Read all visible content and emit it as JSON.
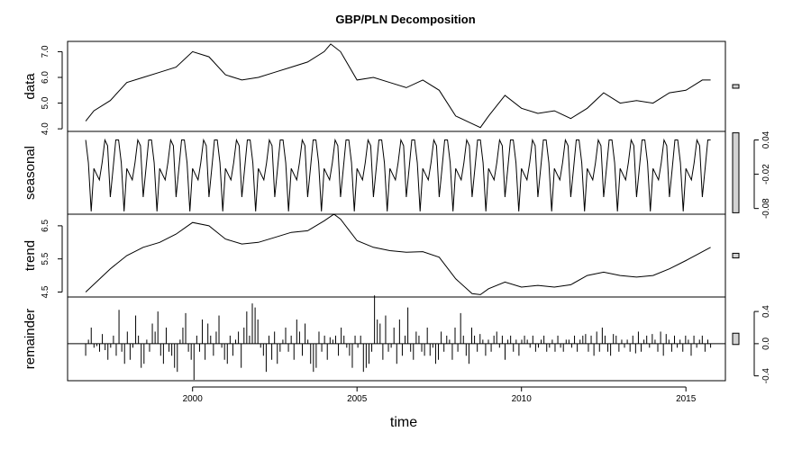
{
  "chart_data": {
    "type": "line",
    "title": "GBP/PLN Decomposition",
    "xlabel": "time",
    "xlim": [
      1996.2,
      2016.2
    ],
    "xticks": [
      2000,
      2005,
      2010,
      2015
    ],
    "panels": [
      {
        "name": "data",
        "ylabel": "data",
        "ylim": [
          3.9,
          7.4
        ],
        "yticks": [
          4.0,
          5.0,
          6.0,
          7.0
        ],
        "ytick_labels": [
          "4.0",
          "5.0",
          "6.0",
          "7.0"
        ],
        "axis_side": "left",
        "style": "line",
        "x": [
          1996.75,
          1997.0,
          1997.5,
          1998.0,
          1998.5,
          1999.0,
          1999.5,
          2000.0,
          2000.5,
          2001.0,
          2001.5,
          2002.0,
          2002.5,
          2003.0,
          2003.5,
          2004.0,
          2004.2,
          2004.5,
          2005.0,
          2005.5,
          2006.0,
          2006.5,
          2007.0,
          2007.5,
          2008.0,
          2008.5,
          2008.75,
          2009.0,
          2009.5,
          2010.0,
          2010.5,
          2011.0,
          2011.5,
          2012.0,
          2012.5,
          2013.0,
          2013.5,
          2014.0,
          2014.5,
          2015.0,
          2015.5,
          2015.75
        ],
        "values": [
          4.3,
          4.7,
          5.1,
          5.8,
          6.0,
          6.2,
          6.4,
          7.0,
          6.8,
          6.1,
          5.9,
          6.0,
          6.2,
          6.4,
          6.6,
          7.0,
          7.3,
          7.0,
          5.9,
          6.0,
          5.8,
          5.6,
          5.9,
          5.5,
          4.5,
          4.2,
          4.05,
          4.5,
          5.3,
          4.8,
          4.6,
          4.7,
          4.4,
          4.8,
          5.4,
          5.0,
          5.1,
          5.0,
          5.4,
          5.5,
          5.9,
          5.9
        ]
      },
      {
        "name": "seasonal",
        "ylabel": "seasonal",
        "ylim": [
          -0.09,
          0.055
        ],
        "yticks": [
          -0.08,
          -0.02,
          0.04
        ],
        "ytick_labels": [
          "-0.08",
          "-0.02",
          "0.04"
        ],
        "axis_side": "right",
        "style": "line",
        "start": 1996.75,
        "end": 2015.75,
        "pattern": [
          0.04,
          0.0,
          -0.085,
          -0.01,
          -0.02,
          -0.03,
          0.0,
          0.04,
          0.03,
          -0.06,
          -0.01,
          0.04
        ]
      },
      {
        "name": "trend",
        "ylabel": "trend",
        "ylim": [
          4.35,
          6.85
        ],
        "yticks": [
          4.5,
          5.5,
          6.5
        ],
        "ytick_labels": [
          "4.5",
          "5.5",
          "6.5"
        ],
        "axis_side": "left",
        "style": "line",
        "x": [
          1996.75,
          1997.5,
          1998.0,
          1998.5,
          1999.0,
          1999.5,
          2000.0,
          2000.5,
          2001.0,
          2001.5,
          2002.0,
          2002.5,
          2003.0,
          2003.5,
          2004.0,
          2004.3,
          2004.5,
          2005.0,
          2005.5,
          2006.0,
          2006.5,
          2007.0,
          2007.5,
          2008.0,
          2008.5,
          2008.75,
          2009.0,
          2009.5,
          2010.0,
          2010.5,
          2011.0,
          2011.5,
          2012.0,
          2012.5,
          2013.0,
          2013.5,
          2014.0,
          2014.5,
          2015.0,
          2015.75
        ],
        "values": [
          4.5,
          5.2,
          5.6,
          5.85,
          6.0,
          6.25,
          6.6,
          6.5,
          6.1,
          5.95,
          6.0,
          6.15,
          6.3,
          6.35,
          6.65,
          6.85,
          6.7,
          6.05,
          5.85,
          5.75,
          5.7,
          5.72,
          5.55,
          4.9,
          4.45,
          4.42,
          4.6,
          4.8,
          4.65,
          4.7,
          4.65,
          4.72,
          5.0,
          5.1,
          5.0,
          4.95,
          5.0,
          5.2,
          5.45,
          5.85
        ]
      },
      {
        "name": "remainder",
        "ylabel": "remainder",
        "ylim": [
          -0.46,
          0.58
        ],
        "yticks": [
          -0.4,
          0.0,
          0.4
        ],
        "ytick_labels": [
          "-0.4",
          "0.0",
          "0.4"
        ],
        "axis_side": "right",
        "style": "bars",
        "start": 1996.75,
        "end": 2015.75,
        "values": [
          -0.15,
          0.05,
          0.2,
          -0.05,
          -0.03,
          -0.1,
          0.12,
          -0.08,
          -0.2,
          -0.05,
          0.1,
          -0.15,
          0.42,
          -0.1,
          -0.25,
          0.15,
          -0.2,
          -0.05,
          0.35,
          0.1,
          -0.3,
          -0.25,
          0.05,
          -0.1,
          0.25,
          0.15,
          0.4,
          -0.15,
          -0.25,
          0.2,
          -0.1,
          -0.15,
          -0.3,
          -0.35,
          0.05,
          0.2,
          0.38,
          -0.1,
          -0.2,
          -0.45,
          0.1,
          -0.1,
          0.3,
          -0.2,
          0.25,
          0.1,
          -0.15,
          0.15,
          0.35,
          -0.05,
          -0.2,
          -0.25,
          0.1,
          -0.15,
          0.05,
          0.15,
          -0.3,
          0.2,
          0.4,
          0.1,
          0.5,
          0.45,
          0.3,
          -0.05,
          -0.15,
          -0.35,
          0.1,
          -0.2,
          0.15,
          -0.25,
          -0.1,
          0.05,
          0.2,
          -0.1,
          0.1,
          -0.2,
          0.3,
          0.15,
          -0.15,
          0.25,
          0.05,
          -0.25,
          -0.35,
          -0.3,
          0.15,
          -0.1,
          0.1,
          -0.2,
          0.08,
          0.05,
          0.1,
          -0.15,
          0.2,
          0.1,
          -0.05,
          -0.15,
          -0.3,
          0.1,
          -0.05,
          0.1,
          -0.35,
          -0.3,
          -0.25,
          -0.1,
          0.6,
          0.3,
          0.25,
          -0.2,
          0.35,
          -0.1,
          -0.05,
          0.2,
          -0.25,
          0.3,
          -0.15,
          0.1,
          0.45,
          -0.1,
          -0.2,
          0.15,
          0.1,
          -0.1,
          -0.15,
          0.2,
          -0.15,
          -0.05,
          -0.25,
          -0.2,
          0.15,
          -0.1,
          0.1,
          0.05,
          -0.2,
          0.2,
          -0.1,
          0.38,
          0.1,
          -0.15,
          -0.25,
          0.2,
          0.1,
          -0.1,
          0.12,
          0.05,
          -0.15,
          0.05,
          -0.1,
          0.1,
          0.15,
          -0.05,
          0.1,
          -0.2,
          0.05,
          0.1,
          -0.1,
          0.05,
          -0.15,
          0.05,
          0.1,
          0.05,
          -0.05,
          0.1,
          -0.1,
          -0.05,
          0.05,
          0.1,
          -0.1,
          -0.05,
          0.05,
          -0.1,
          0.1,
          -0.05,
          -0.1,
          0.05,
          0.05,
          -0.05,
          0.1,
          -0.1,
          0.05,
          0.1,
          0.12,
          -0.1,
          0.1,
          -0.15,
          0.15,
          -0.1,
          0.2,
          0.1,
          -0.1,
          -0.15,
          0.12,
          0.1,
          -0.1,
          0.05,
          -0.05,
          0.05,
          -0.1,
          0.1,
          -0.12,
          0.15,
          -0.1,
          0.05,
          0.1,
          -0.05,
          0.12,
          0.05,
          -0.1,
          0.15,
          -0.15,
          0.12,
          0.05,
          -0.1,
          0.1,
          -0.05,
          0.05,
          -0.1,
          0.1,
          0.05,
          -0.15,
          0.1,
          -0.05,
          0.05,
          0.1,
          -0.1,
          0.05,
          -0.05
        ]
      }
    ],
    "range_bar": {
      "height": 0.14
    }
  }
}
